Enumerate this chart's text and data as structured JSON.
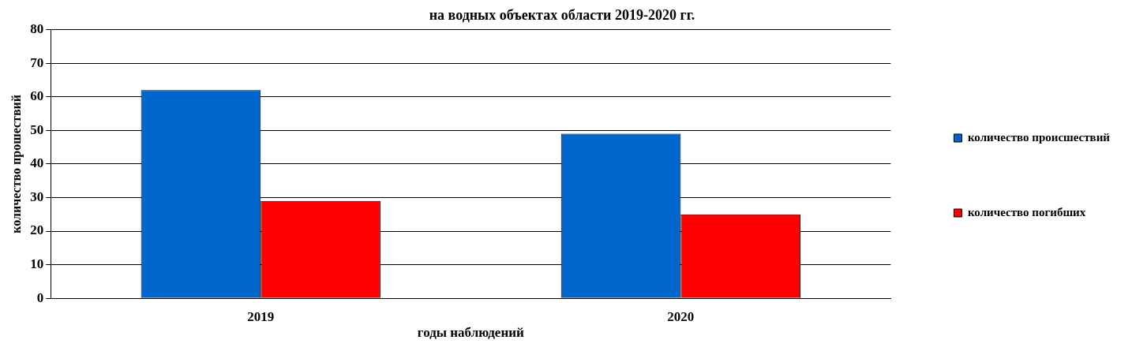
{
  "chart_data": {
    "type": "bar",
    "title": "на водных объектах области 2019-2020 гг.",
    "xlabel": "годы наблюдений",
    "ylabel": "количество прошествий",
    "categories": [
      "2019",
      "2020"
    ],
    "series": [
      {
        "name": "количество происшествий",
        "color": "#0066cc",
        "values": [
          62,
          49
        ]
      },
      {
        "name": "количество погибших",
        "color": "#ff0000",
        "values": [
          29,
          25
        ]
      }
    ],
    "ylim": [
      0,
      80
    ],
    "yticks": [
      0,
      10,
      20,
      30,
      40,
      50,
      60,
      70,
      80
    ],
    "grid": "y",
    "legend": "right"
  }
}
